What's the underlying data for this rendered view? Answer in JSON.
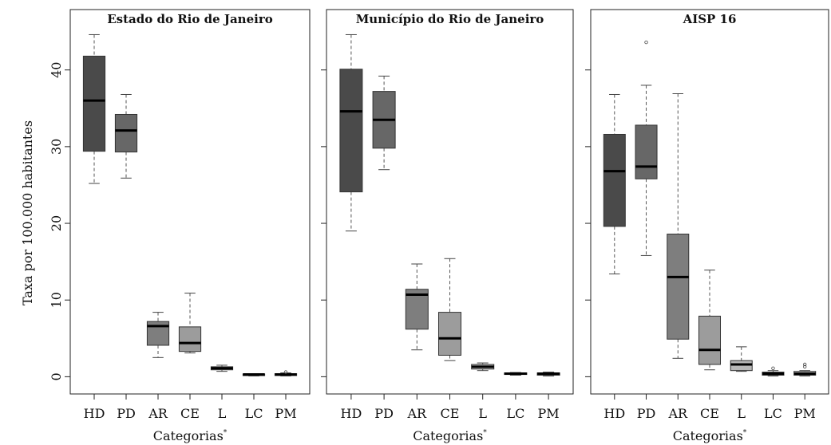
{
  "ylabel": "Taxa por 100.000 habitantes",
  "chart_data": [
    {
      "type": "box",
      "title": "Estado do Rio de Janeiro",
      "xlabel": "Categorias",
      "xlabel_sup": "*",
      "ylim": [
        -1,
        46
      ],
      "yticks": [
        "0",
        "10",
        "20",
        "30",
        "40"
      ],
      "categories": [
        "HD",
        "PD",
        "AR",
        "CE",
        "L",
        "LC",
        "PM"
      ],
      "boxes": [
        {
          "low": 25.2,
          "q1": 29.4,
          "median": 36.0,
          "q3": 41.8,
          "high": 44.6,
          "outliers": [],
          "color": "#4a4a4a"
        },
        {
          "low": 25.9,
          "q1": 29.3,
          "median": 32.1,
          "q3": 34.2,
          "high": 36.8,
          "outliers": [],
          "color": "#676767"
        },
        {
          "low": 2.5,
          "q1": 4.1,
          "median": 6.6,
          "q3": 7.2,
          "high": 8.4,
          "outliers": [],
          "color": "#7e7e7e"
        },
        {
          "low": 3.1,
          "q1": 3.3,
          "median": 4.4,
          "q3": 6.5,
          "high": 10.9,
          "outliers": [],
          "color": "#9c9c9c"
        },
        {
          "low": 0.7,
          "q1": 0.9,
          "median": 1.1,
          "q3": 1.3,
          "high": 1.5,
          "outliers": [],
          "color": "#b8b8b8"
        },
        {
          "low": 0.1,
          "q1": 0.2,
          "median": 0.3,
          "q3": 0.35,
          "high": 0.4,
          "outliers": [],
          "color": "#c9c9c9"
        },
        {
          "low": 0.1,
          "q1": 0.15,
          "median": 0.3,
          "q3": 0.4,
          "high": 0.5,
          "outliers": [
            0.6
          ],
          "color": "#d4d4d4"
        }
      ]
    },
    {
      "type": "box",
      "title": "Município do Rio de Janeiro",
      "xlabel": "Categorias",
      "xlabel_sup": "*",
      "ylim": [
        -1,
        46
      ],
      "yticks": [],
      "categories": [
        "HD",
        "PD",
        "AR",
        "CE",
        "L",
        "LC",
        "PM"
      ],
      "boxes": [
        {
          "low": 19.0,
          "q1": 24.1,
          "median": 34.6,
          "q3": 40.1,
          "high": 44.6,
          "outliers": [],
          "color": "#4a4a4a"
        },
        {
          "low": 27.0,
          "q1": 29.8,
          "median": 33.5,
          "q3": 37.2,
          "high": 39.2,
          "outliers": [],
          "color": "#676767"
        },
        {
          "low": 3.5,
          "q1": 6.2,
          "median": 10.7,
          "q3": 11.4,
          "high": 14.7,
          "outliers": [],
          "color": "#7e7e7e"
        },
        {
          "low": 2.1,
          "q1": 2.8,
          "median": 5.0,
          "q3": 8.4,
          "high": 15.4,
          "outliers": [],
          "color": "#9c9c9c"
        },
        {
          "low": 0.8,
          "q1": 1.0,
          "median": 1.3,
          "q3": 1.6,
          "high": 1.8,
          "outliers": [],
          "color": "#b8b8b8"
        },
        {
          "low": 0.2,
          "q1": 0.3,
          "median": 0.4,
          "q3": 0.5,
          "high": 0.55,
          "outliers": [],
          "color": "#c9c9c9"
        },
        {
          "low": 0.1,
          "q1": 0.2,
          "median": 0.4,
          "q3": 0.5,
          "high": 0.6,
          "outliers": [],
          "color": "#d4d4d4"
        }
      ]
    },
    {
      "type": "box",
      "title": "AISP 16",
      "xlabel": "Categorias",
      "xlabel_sup": "*",
      "ylim": [
        -1,
        46
      ],
      "yticks": [],
      "categories": [
        "HD",
        "PD",
        "AR",
        "CE",
        "L",
        "LC",
        "PM"
      ],
      "boxes": [
        {
          "low": 13.4,
          "q1": 19.6,
          "median": 26.8,
          "q3": 31.6,
          "high": 36.8,
          "outliers": [],
          "color": "#4a4a4a"
        },
        {
          "low": 15.8,
          "q1": 25.8,
          "median": 27.4,
          "q3": 32.8,
          "high": 38.0,
          "outliers": [
            43.6
          ],
          "color": "#676767"
        },
        {
          "low": 2.4,
          "q1": 4.9,
          "median": 13.0,
          "q3": 18.6,
          "high": 36.9,
          "outliers": [],
          "color": "#7e7e7e"
        },
        {
          "low": 0.9,
          "q1": 1.6,
          "median": 3.5,
          "q3": 7.9,
          "high": 13.9,
          "outliers": [],
          "color": "#9c9c9c"
        },
        {
          "low": 0.7,
          "q1": 0.8,
          "median": 1.6,
          "q3": 2.1,
          "high": 3.9,
          "outliers": [],
          "color": "#b8b8b8"
        },
        {
          "low": 0.1,
          "q1": 0.2,
          "median": 0.4,
          "q3": 0.6,
          "high": 0.8,
          "outliers": [
            1.1
          ],
          "color": "#c9c9c9"
        },
        {
          "low": 0.1,
          "q1": 0.2,
          "median": 0.4,
          "q3": 0.7,
          "high": 0.8,
          "outliers": [
            1.3,
            1.6
          ],
          "color": "#d4d4d4"
        }
      ]
    }
  ]
}
